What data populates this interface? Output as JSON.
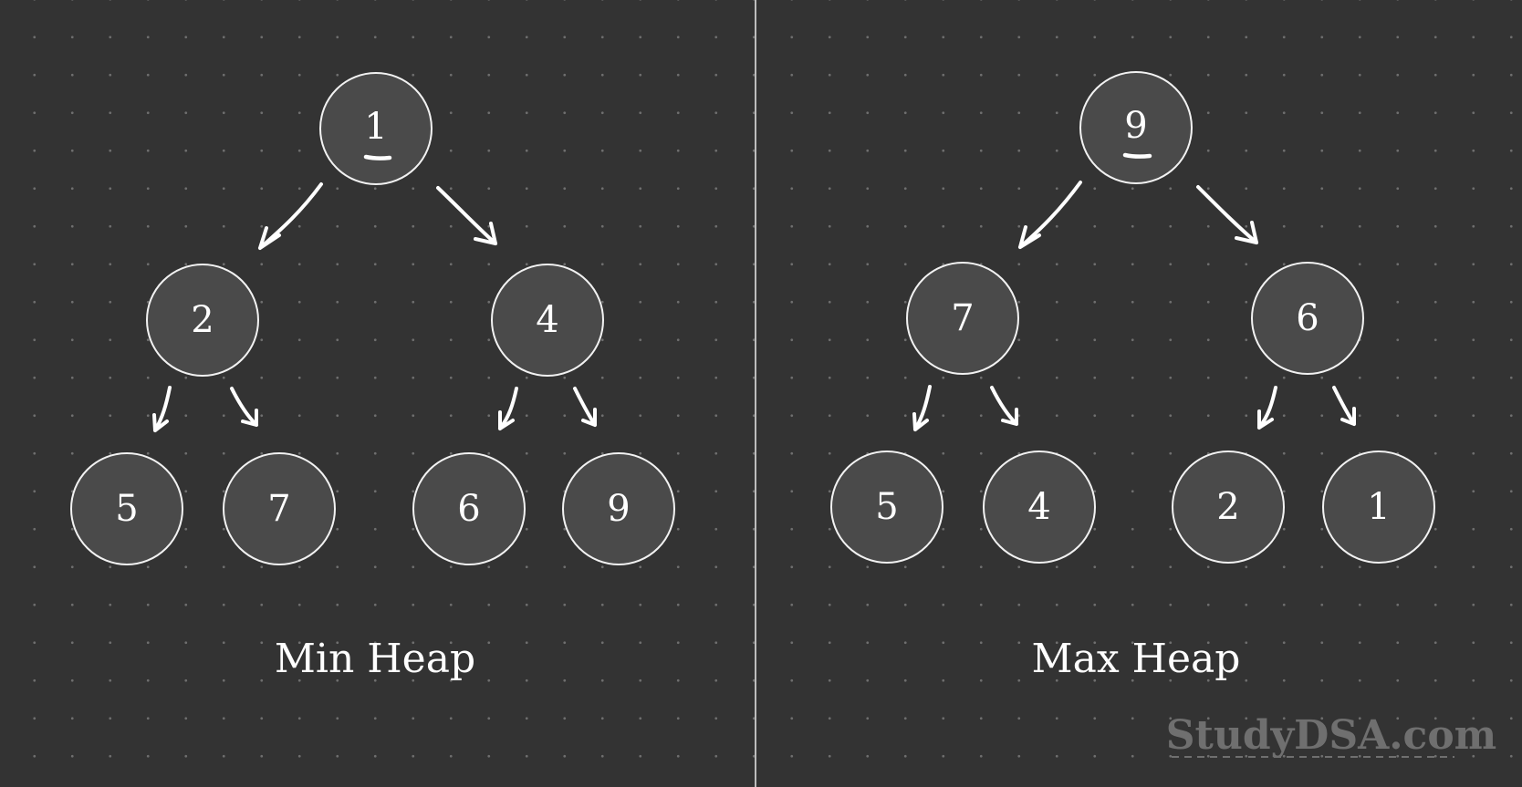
{
  "panels": [
    {
      "label": "Min Heap",
      "root": "1",
      "level1": [
        "2",
        "4"
      ],
      "level2": [
        "5",
        "7",
        "6",
        "9"
      ]
    },
    {
      "label": "Max Heap",
      "root": "9",
      "level1": [
        "7",
        "6"
      ],
      "level2": [
        "5",
        "4",
        "2",
        "1"
      ]
    }
  ],
  "watermark": "StudyDSA.com",
  "colors": {
    "background": "#333333",
    "node_fill": "#4a4a4a",
    "node_stroke": "#f2f2f2",
    "text": "#ffffff",
    "watermark": "#6f6f6f",
    "divider": "#bdbdbd"
  }
}
